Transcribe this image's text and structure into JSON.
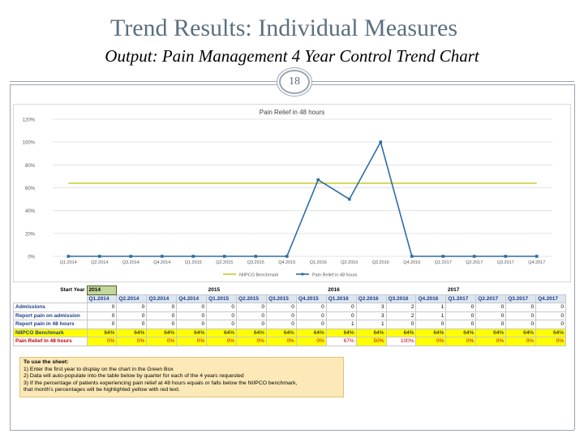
{
  "slide": {
    "title": "Trend Results:  Individual Measures",
    "subtitle": "Output: Pain Management 4 Year Control Trend Chart",
    "page_number": "18"
  },
  "chart_data": {
    "type": "line",
    "title": "Pain Relief in 48 hours",
    "categories": [
      "Q1.2014",
      "Q2.2014",
      "Q3.2014",
      "Q4.2014",
      "Q1.2015",
      "Q2.2015",
      "Q3.2015",
      "Q4.2015",
      "Q1.2016",
      "Q2.2016",
      "Q3.2016",
      "Q4.2016",
      "Q1.2017",
      "Q2.2017",
      "Q3.2017",
      "Q4.2017"
    ],
    "y_ticks": [
      "0%",
      "20%",
      "40%",
      "60%",
      "80%",
      "100%",
      "120%"
    ],
    "ylim": [
      0,
      120
    ],
    "grid": true,
    "legend_position": "bottom",
    "series": [
      {
        "name": "NIIPCO Benchmark",
        "color": "#c9c92a",
        "values": [
          64,
          64,
          64,
          64,
          64,
          64,
          64,
          64,
          64,
          64,
          64,
          64,
          64,
          64,
          64,
          64
        ]
      },
      {
        "name": "Pain Relief in 48 hours",
        "color": "#2e6da4",
        "values": [
          0,
          0,
          0,
          0,
          0,
          0,
          0,
          0,
          67,
          50,
          100,
          0,
          0,
          0,
          0,
          0
        ]
      }
    ]
  },
  "table": {
    "start_year_label": "Start Year",
    "start_year": "2014",
    "years": [
      "2015",
      "2016",
      "2017"
    ],
    "quarters": [
      "Q1.2014",
      "Q2.2014",
      "Q3.2014",
      "Q4.2014",
      "Q1.2015",
      "Q2.2015",
      "Q3.2015",
      "Q4.2015",
      "Q1.2016",
      "Q2.2016",
      "Q3.2016",
      "Q4.2016",
      "Q1.2017",
      "Q2.2017",
      "Q3.2017",
      "Q4.2017"
    ],
    "rows": [
      {
        "label": "Admissions",
        "values": [
          "0",
          "0",
          "0",
          "0",
          "0",
          "0",
          "0",
          "0",
          "0",
          "3",
          "2",
          "1",
          "0",
          "0",
          "0",
          "0"
        ]
      },
      {
        "label": "Report pain on admission",
        "values": [
          "0",
          "0",
          "0",
          "0",
          "0",
          "0",
          "0",
          "0",
          "0",
          "3",
          "2",
          "1",
          "0",
          "0",
          "0",
          "0"
        ]
      },
      {
        "label": "Report pain in 48 hours",
        "values": [
          "0",
          "0",
          "0",
          "0",
          "0",
          "0",
          "0",
          "0",
          "1",
          "1",
          "0",
          "0",
          "0",
          "0",
          "0",
          "0"
        ]
      },
      {
        "label": "NIIPCO Benchmark",
        "values": [
          "64%",
          "64%",
          "64%",
          "64%",
          "64%",
          "64%",
          "64%",
          "64%",
          "64%",
          "64%",
          "64%",
          "64%",
          "64%",
          "64%",
          "64%",
          "64%"
        ]
      },
      {
        "label": "Pain Relief in 48 hours",
        "values": [
          "0%",
          "0%",
          "0%",
          "0%",
          "0%",
          "0%",
          "0%",
          "0%",
          "67%",
          "50%",
          "100%",
          "0%",
          "0%",
          "0%",
          "0%",
          "0%"
        ]
      }
    ]
  },
  "instructions": {
    "heading": "To use the sheet:",
    "lines": [
      "1) Enter the first year to display on the chart in the Green Box",
      "2) Data will auto-populate into the table below by quarter for each of the 4 years requested",
      "3) If the percentage of patients experiencing pain relief at 48 hours equals or falls below the NIIPCO benchmark,",
      "that month's percentages will be highlighted yellow with red text."
    ]
  }
}
